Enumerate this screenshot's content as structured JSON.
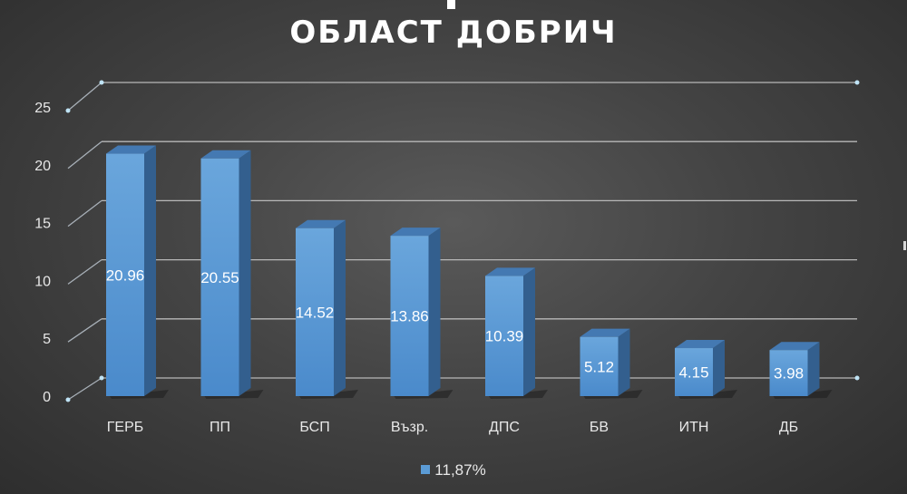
{
  "chart_data": {
    "type": "bar",
    "title": "ОБЛАСТ ДОБРИЧ",
    "categories": [
      "ГЕРБ",
      "ПП",
      "БСП",
      "Възр.",
      "ДПС",
      "БВ",
      "ИТН",
      "ДБ"
    ],
    "series": [
      {
        "name": "11,87%",
        "values": [
          20.96,
          20.55,
          14.52,
          13.86,
          10.39,
          5.12,
          4.15,
          3.98
        ]
      }
    ],
    "data_labels": [
      "20.96",
      "20.55",
      "14.52",
      "13.86",
      "10.39",
      "5.12",
      "4.15",
      "3.98"
    ],
    "ylim": [
      0,
      25
    ],
    "yticks": [
      "0",
      "5",
      "10",
      "15",
      "20",
      "25"
    ],
    "grid": true,
    "style_3d": true,
    "legend_position": "bottom",
    "colors": {
      "bar": "#5b9bd5",
      "background": "#404040",
      "text": "#ffffff",
      "grid": "#c8c8c8"
    }
  }
}
